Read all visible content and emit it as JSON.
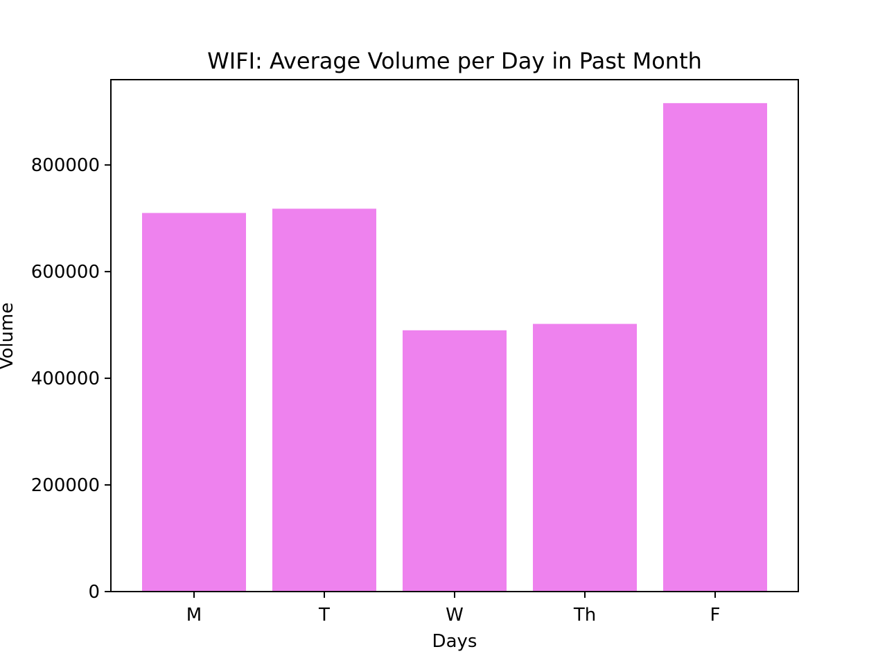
{
  "chart_data": {
    "type": "bar",
    "title": "WIFI: Average Volume per Day in Past Month",
    "xlabel": "Days",
    "ylabel": "Volume",
    "categories": [
      "M",
      "T",
      "W",
      "Th",
      "F"
    ],
    "values": [
      710000,
      718000,
      490000,
      502000,
      916000
    ],
    "ylim": [
      0,
      960000
    ],
    "yticks": [
      0,
      200000,
      400000,
      600000,
      800000
    ],
    "ytick_labels": [
      "0",
      "200000",
      "400000",
      "600000",
      "800000"
    ],
    "bar_color": "#EE82EE",
    "grid": false
  }
}
